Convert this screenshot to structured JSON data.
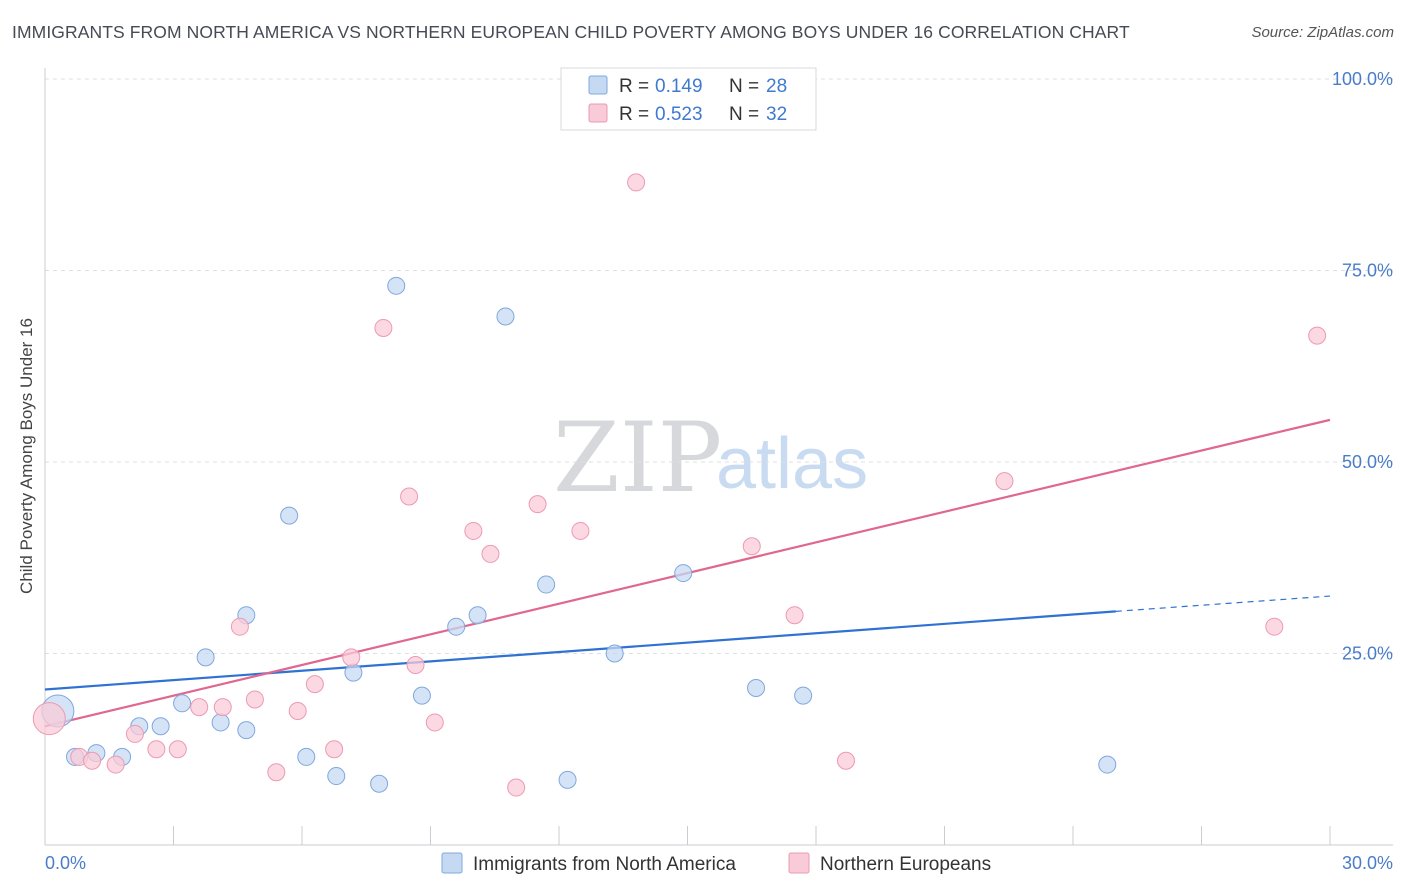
{
  "title": "IMMIGRANTS FROM NORTH AMERICA VS NORTHERN EUROPEAN CHILD POVERTY AMONG BOYS UNDER 16 CORRELATION CHART",
  "source": "Source: ZipAtlas.com",
  "watermark": {
    "zip": "ZIP",
    "atlas": "atlas"
  },
  "colors": {
    "blue_fill": "#c5d9f3",
    "blue_stroke": "#7fa8dc",
    "blue_line": "#2f72d2",
    "pink_fill": "#f9cbd8",
    "pink_stroke": "#ec9ab3",
    "pink_line": "#e0678f",
    "axis_text": "#4a7cc9",
    "grid": "#dcdfe4"
  },
  "legend": {
    "rows": [
      {
        "r_label": "R = ",
        "r_value": "0.149",
        "n_label": "N = ",
        "n_value": "28"
      },
      {
        "r_label": "R = ",
        "r_value": "0.523",
        "n_label": "N = ",
        "n_value": "32"
      }
    ]
  },
  "chart_data": {
    "type": "scatter",
    "ylabel": "Child Poverty Among Boys Under 16",
    "xlim": [
      0,
      30
    ],
    "ylim": [
      0,
      100
    ],
    "x_tick_labels": [
      "0.0%",
      "30.0%"
    ],
    "y_tick_labels": [
      "100.0%",
      "75.0%",
      "50.0%",
      "25.0%"
    ],
    "y_tick_values": [
      100,
      75,
      50,
      25
    ],
    "grid": true,
    "series": [
      {
        "name": "Immigrants from North America",
        "color": "blue",
        "points": [
          [
            0.3,
            17.5
          ],
          [
            0.7,
            11.5
          ],
          [
            1.2,
            12.0
          ],
          [
            1.8,
            11.5
          ],
          [
            2.2,
            15.5
          ],
          [
            2.7,
            15.5
          ],
          [
            3.2,
            18.5
          ],
          [
            3.75,
            24.5
          ],
          [
            4.1,
            16.0
          ],
          [
            4.7,
            15.0
          ],
          [
            4.7,
            30.0
          ],
          [
            5.7,
            43.0
          ],
          [
            6.1,
            11.5
          ],
          [
            6.8,
            9.0
          ],
          [
            7.2,
            22.5
          ],
          [
            7.8,
            8.0
          ],
          [
            8.2,
            73.0
          ],
          [
            8.8,
            19.5
          ],
          [
            9.6,
            28.5
          ],
          [
            10.1,
            30.0
          ],
          [
            10.75,
            69.0
          ],
          [
            11.7,
            34.0
          ],
          [
            12.2,
            8.5
          ],
          [
            13.3,
            25.0
          ],
          [
            14.9,
            35.5
          ],
          [
            16.6,
            20.5
          ],
          [
            17.7,
            19.5
          ],
          [
            24.8,
            10.5
          ]
        ],
        "trend": {
          "x0": 0,
          "y0": 20.3,
          "x1": 25,
          "y1": 30.5,
          "dash_x1": 30,
          "dash_y1": 32.5
        }
      },
      {
        "name": "Northern Europeans",
        "color": "pink",
        "points": [
          [
            0.1,
            16.5
          ],
          [
            0.8,
            11.5
          ],
          [
            1.1,
            11.0
          ],
          [
            1.65,
            10.5
          ],
          [
            2.1,
            14.5
          ],
          [
            2.6,
            12.5
          ],
          [
            3.1,
            12.5
          ],
          [
            3.6,
            18.0
          ],
          [
            4.15,
            18.0
          ],
          [
            4.55,
            28.5
          ],
          [
            4.9,
            19.0
          ],
          [
            5.4,
            9.5
          ],
          [
            5.9,
            17.5
          ],
          [
            6.3,
            21.0
          ],
          [
            6.75,
            12.5
          ],
          [
            7.15,
            24.5
          ],
          [
            7.9,
            67.5
          ],
          [
            8.5,
            45.5
          ],
          [
            8.65,
            23.5
          ],
          [
            9.1,
            16.0
          ],
          [
            10.0,
            41.0
          ],
          [
            10.4,
            38.0
          ],
          [
            11.0,
            7.5
          ],
          [
            11.5,
            44.5
          ],
          [
            12.5,
            41.0
          ],
          [
            13.8,
            86.5
          ],
          [
            16.5,
            39.0
          ],
          [
            17.5,
            30.0
          ],
          [
            18.7,
            11.0
          ],
          [
            22.4,
            47.5
          ],
          [
            28.7,
            28.5
          ],
          [
            29.7,
            66.5
          ]
        ],
        "trend": {
          "x0": 0,
          "y0": 15.5,
          "x1": 30,
          "y1": 55.5
        }
      }
    ]
  }
}
